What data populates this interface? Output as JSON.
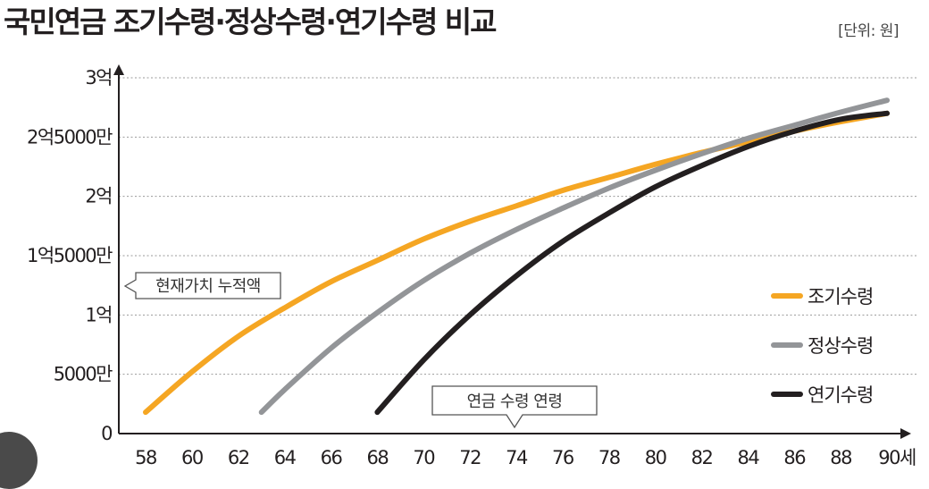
{
  "title": "국민연금 조기수령·정상수령·연기수령 비교",
  "unit_label": "[단위: 원]",
  "chart_data": {
    "type": "line",
    "title": "국민연금 조기수령·정상수령·연기수령 비교",
    "unit": "[단위: 원]",
    "x_tick_labels": [
      "58",
      "60",
      "62",
      "64",
      "66",
      "68",
      "70",
      "72",
      "74",
      "76",
      "78",
      "80",
      "82",
      "84",
      "86",
      "88",
      "90세"
    ],
    "x_ticks": [
      58,
      60,
      62,
      64,
      66,
      68,
      70,
      72,
      74,
      76,
      78,
      80,
      82,
      84,
      86,
      88,
      90
    ],
    "xlim": [
      58,
      90
    ],
    "y_ticks": [
      0,
      50000000,
      100000000,
      150000000,
      200000000,
      250000000,
      300000000
    ],
    "y_tick_labels": [
      "0",
      "5000만",
      "1억",
      "1억5000만",
      "2억",
      "2억5000만",
      "3억"
    ],
    "ylim": [
      0,
      300000000
    ],
    "grid": "horizontal dotted",
    "legend_position": "right",
    "series": [
      {
        "name": "조기수령",
        "color": "#f5a623",
        "x": [
          58,
          60,
          62,
          64,
          66,
          68,
          70,
          72,
          74,
          76,
          78,
          80,
          82,
          84,
          86,
          88,
          90
        ],
        "values": [
          18000000,
          52000000,
          82000000,
          106000000,
          128000000,
          146000000,
          164000000,
          179000000,
          192000000,
          205000000,
          216000000,
          227000000,
          237000000,
          246000000,
          255000000,
          263000000,
          270000000
        ]
      },
      {
        "name": "정상수령",
        "color": "#939598",
        "x": [
          63,
          64,
          66,
          68,
          70,
          72,
          74,
          76,
          78,
          80,
          82,
          84,
          86,
          88,
          90
        ],
        "values": [
          18000000,
          37000000,
          72000000,
          102000000,
          129000000,
          152000000,
          172000000,
          190000000,
          207000000,
          222000000,
          236000000,
          249000000,
          260000000,
          271000000,
          281000000
        ]
      },
      {
        "name": "연기수령",
        "color": "#231f20",
        "x": [
          68,
          70,
          72,
          74,
          76,
          78,
          80,
          82,
          84,
          86,
          88,
          90
        ],
        "values": [
          18000000,
          62000000,
          100000000,
          133000000,
          162000000,
          186000000,
          208000000,
          226000000,
          242000000,
          255000000,
          265000000,
          270000000
        ]
      }
    ],
    "annotations": [
      {
        "text": "현재가치 누적액",
        "target": "y-axis"
      },
      {
        "text": "연금 수령 연령",
        "target": "x-axis",
        "x": 74
      }
    ]
  }
}
